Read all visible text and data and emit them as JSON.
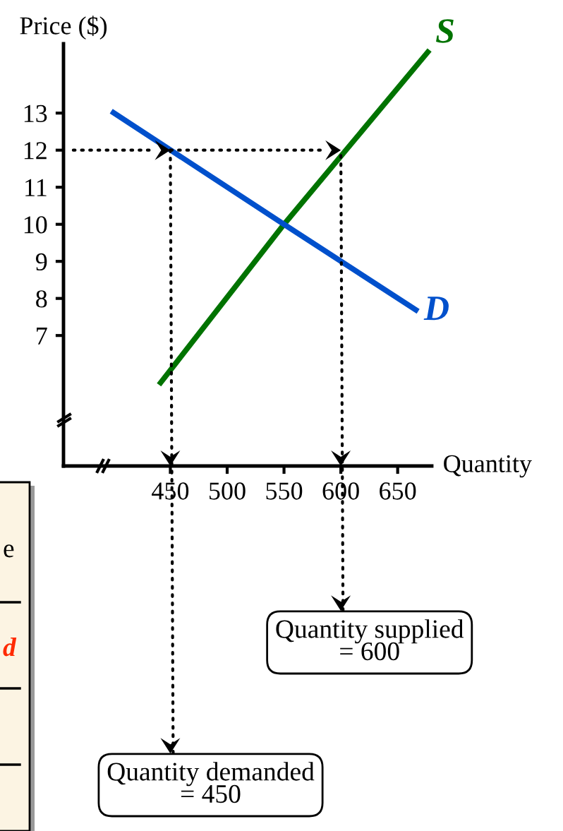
{
  "chart_data": {
    "type": "line",
    "xlabel": "Quantity",
    "ylabel": "Price ($)",
    "series": [
      {
        "name": "S",
        "color": "#007300",
        "x": [
          440,
          550,
          678
        ],
        "values": [
          5.67,
          10,
          14.7
        ]
      },
      {
        "name": "D",
        "color": "#0050cc",
        "x": [
          398,
          550,
          668
        ],
        "values": [
          13.05,
          10,
          7.65
        ]
      }
    ],
    "xlim": [
      356,
      680
    ],
    "ylim": [
      3.48,
      14.87
    ],
    "xticks": [
      450,
      500,
      550,
      600,
      650
    ],
    "yticks": [
      7,
      8,
      9,
      10,
      11,
      12,
      13
    ],
    "grid": false,
    "legend": false,
    "marker": "none",
    "line_style": "solid",
    "annotations": [
      {
        "text": "Quantity supplied\n= 600",
        "x": 600,
        "y": 12
      },
      {
        "text": "Quantity demanded\n= 450",
        "x": 450,
        "y": 12
      },
      "e",
      "d"
    ]
  }
}
